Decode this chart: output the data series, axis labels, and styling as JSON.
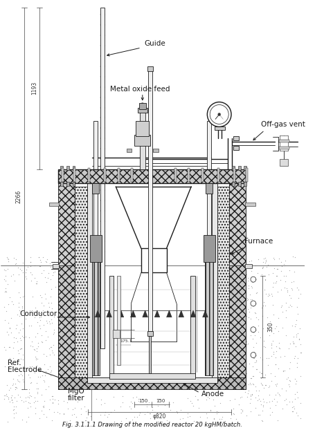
{
  "title": "Fig. 3.1.1.1 Drawing of the modified reactor 20 kgHM/batch.",
  "line_color": "#1a1a1a",
  "labels": {
    "guide": "Guide",
    "metal_oxide_feed": "Metal oxide feed",
    "off_gas_vent": "Off-gas vent",
    "furnace": "Furnace",
    "conductor": "Conductor",
    "ref_electrode_1": "Ref.",
    "ref_electrode_2": "Electrode",
    "mgo_filter_1": "MgO",
    "mgo_filter_2": "filter",
    "anode": "Anode"
  },
  "dimensions": {
    "dim1": "1193",
    "dim2": "2266",
    "dim3": "150",
    "dim4": "150",
    "dim5": "φ820",
    "dim6": "350"
  }
}
